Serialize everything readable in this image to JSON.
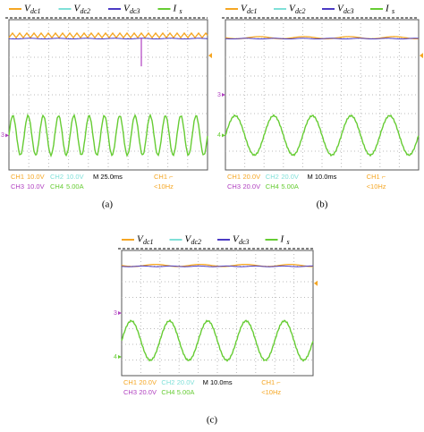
{
  "legend": [
    {
      "symbol": "V",
      "sub": "dc1",
      "color": "#f5a623"
    },
    {
      "symbol": "V",
      "sub": "dc2",
      "color": "#7fe0d8"
    },
    {
      "symbol": "V",
      "sub": "dc3",
      "color": "#4b3bc4"
    },
    {
      "symbol": "I",
      "sub": "s",
      "color": "#66cc33"
    }
  ],
  "panels": [
    {
      "label": "(a)",
      "markers": [
        "3"
      ],
      "readout": [
        [
          {
            "text": "CH1",
            "color": "#f5a623"
          },
          {
            "text": "10.0V",
            "color": "#f5a623"
          },
          {
            "text": "CH2",
            "color": "#7fe0d8"
          },
          {
            "text": "10.0V",
            "color": "#7fe0d8"
          },
          {
            "text": "M 25.0ms",
            "color": "#000000"
          },
          {
            "text": "CH1 ⌐",
            "color": "#f5a623"
          }
        ],
        [
          {
            "text": "CH3",
            "color": "#b040c0"
          },
          {
            "text": "10.0V",
            "color": "#b040c0"
          },
          {
            "text": "CH4",
            "color": "#66cc33"
          },
          {
            "text": "5.00A",
            "color": "#66cc33"
          },
          {
            "text": "<10Hz",
            "color": "#f5a623"
          }
        ]
      ]
    },
    {
      "label": "(b)",
      "markers": [
        "3",
        "4"
      ],
      "readout": [
        [
          {
            "text": "CH1",
            "color": "#f5a623"
          },
          {
            "text": "20.0V",
            "color": "#f5a623"
          },
          {
            "text": "CH2",
            "color": "#7fe0d8"
          },
          {
            "text": "20.0V",
            "color": "#7fe0d8"
          },
          {
            "text": "M 10.0ms",
            "color": "#000000"
          },
          {
            "text": "CH1 ⌐",
            "color": "#f5a623"
          }
        ],
        [
          {
            "text": "CH3",
            "color": "#b040c0"
          },
          {
            "text": "20.0V",
            "color": "#b040c0"
          },
          {
            "text": "CH4",
            "color": "#66cc33"
          },
          {
            "text": "5.00A",
            "color": "#66cc33"
          },
          {
            "text": "<10Hz",
            "color": "#f5a623"
          }
        ]
      ]
    },
    {
      "label": "(c)",
      "markers": [
        "3",
        "4"
      ],
      "readout": [
        [
          {
            "text": "CH1",
            "color": "#f5a623"
          },
          {
            "text": "20.0V",
            "color": "#f5a623"
          },
          {
            "text": "CH2",
            "color": "#7fe0d8"
          },
          {
            "text": "20.0V",
            "color": "#7fe0d8"
          },
          {
            "text": "M 10.0ms",
            "color": "#000000"
          },
          {
            "text": "CH1 ⌐",
            "color": "#f5a623"
          }
        ],
        [
          {
            "text": "CH3",
            "color": "#b040c0"
          },
          {
            "text": "20.0V",
            "color": "#b040c0"
          },
          {
            "text": "CH4",
            "color": "#66cc33"
          },
          {
            "text": "5.00A",
            "color": "#66cc33"
          },
          {
            "text": "<10Hz",
            "color": "#f5a623"
          }
        ]
      ]
    }
  ]
}
